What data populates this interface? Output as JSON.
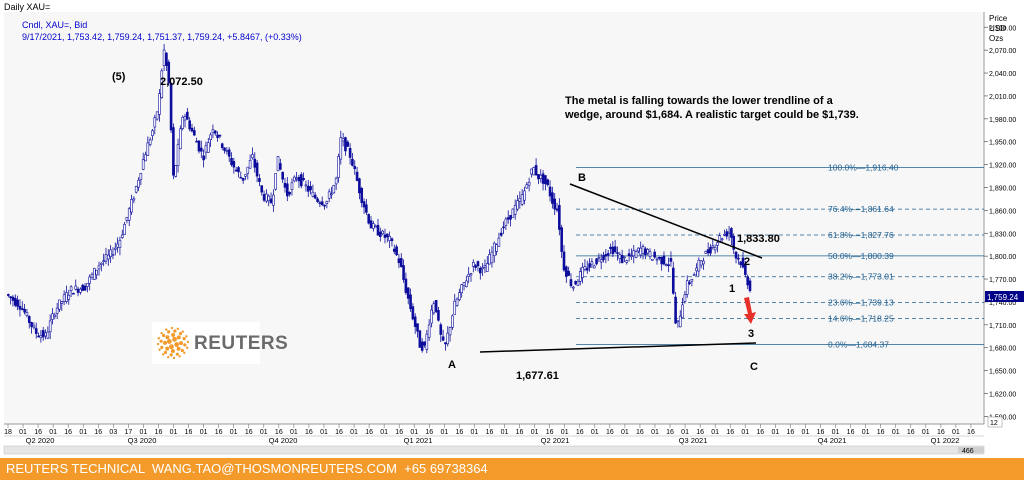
{
  "window_title": "Daily XAU=",
  "header": {
    "line1": "Cndl, XAU=, Bid",
    "line2": "9/17/2021, 1,753.42, 1,759.24, 1,751.37, 1,759.24, +5.8467, (+0.33%)"
  },
  "axis_unit": [
    "Price",
    "USD",
    "Ozs"
  ],
  "current_price_label": "1,759.24",
  "scroll_label": "466",
  "scroll_right_label": "12",
  "annotation": "The metal is falling towards the lower trendline of a wedge, around $1,684. A realistic target could be $1,739.",
  "labels": {
    "wave5": "(5)",
    "high": "2,072.50",
    "point_a": "A",
    "low_a": "1,677.61",
    "point_b": "B",
    "point_c": "C",
    "wave1": "1",
    "wave2": "2",
    "wave3": "3",
    "high_b": "1,833.80"
  },
  "logo": {
    "name": "REUTERS"
  },
  "footer": "REUTERS TECHNICAL  WANG.TAO@THOSMONREUTERS.COM  +65 69738364",
  "colors": {
    "candle": "#0d0d9c",
    "fib": "#1f5f8f",
    "trend": "#000000",
    "arrow": "#e8302a",
    "footer_bg": "#f39a2b"
  },
  "chart_data": {
    "type": "candlestick",
    "title": "Daily XAU=",
    "ylabel": "Price USD Ozs",
    "ylim": [
      1580,
      2120
    ],
    "y_ticks": [
      1590,
      1620,
      1650,
      1680,
      1710,
      1740,
      1770,
      1800,
      1830,
      1860,
      1890,
      1920,
      1950,
      1980,
      2010,
      2040,
      2070,
      2100
    ],
    "y_tick_labels": [
      "1,590.00",
      "1,620.00",
      "1,650.00",
      "1,680.00",
      "1,710.00",
      "1,740.00",
      "1,770.00",
      "1,800.00",
      "1,830.00",
      "1,860.00",
      "1,890.00",
      "1,920.00",
      "1,950.00",
      "1,980.00",
      "2,010.00",
      "2,040.00",
      "2,070.00",
      "2,100.00"
    ],
    "x_day_ticks": [
      "18",
      "01",
      "16",
      "01",
      "16",
      "01",
      "16",
      "03",
      "17",
      "01",
      "16",
      "01",
      "16",
      "01",
      "16",
      "01",
      "16",
      "01",
      "16",
      "01",
      "16",
      "01",
      "16",
      "01",
      "16",
      "01",
      "16",
      "01",
      "16",
      "01",
      "16",
      "01",
      "16",
      "01",
      "16",
      "01",
      "16",
      "01",
      "16",
      "01",
      "16",
      "01",
      "16",
      "01",
      "16",
      "01",
      "16",
      "01",
      "16",
      "01",
      "16",
      "01",
      "16",
      "01",
      "16",
      "01",
      "16",
      "01",
      "16",
      "01",
      "16",
      "01",
      "16",
      "01",
      "16"
    ],
    "x_quarters": [
      "Q2 2020",
      "Q3 2020",
      "Q4 2020",
      "Q1 2021",
      "Q2 2021",
      "Q3 2021",
      "Q4 2021",
      "Q1 2022"
    ],
    "series_path": [
      [
        0,
        1750
      ],
      [
        3,
        1735
      ],
      [
        6,
        1700
      ],
      [
        8,
        1695
      ],
      [
        10,
        1730
      ],
      [
        13,
        1755
      ],
      [
        16,
        1760
      ],
      [
        19,
        1790
      ],
      [
        21,
        1800
      ],
      [
        23,
        1820
      ],
      [
        26,
        1880
      ],
      [
        28,
        1930
      ],
      [
        30,
        1970
      ],
      [
        31,
        2000
      ],
      [
        32,
        2072.5
      ],
      [
        33,
        2030
      ],
      [
        34,
        1900
      ],
      [
        36,
        1990
      ],
      [
        38,
        1960
      ],
      [
        40,
        1930
      ],
      [
        42,
        1970
      ],
      [
        44,
        1945
      ],
      [
        46,
        1920
      ],
      [
        48,
        1900
      ],
      [
        50,
        1930
      ],
      [
        52,
        1880
      ],
      [
        54,
        1870
      ],
      [
        55,
        1930
      ],
      [
        57,
        1880
      ],
      [
        59,
        1905
      ],
      [
        61,
        1890
      ],
      [
        63,
        1875
      ],
      [
        65,
        1870
      ],
      [
        67,
        1900
      ],
      [
        68,
        1955
      ],
      [
        70,
        1930
      ],
      [
        72,
        1880
      ],
      [
        74,
        1840
      ],
      [
        76,
        1830
      ],
      [
        78,
        1820
      ],
      [
        80,
        1790
      ],
      [
        81,
        1760
      ],
      [
        83,
        1710
      ],
      [
        84,
        1684
      ],
      [
        85,
        1680
      ],
      [
        86,
        1720
      ],
      [
        87,
        1745
      ],
      [
        88,
        1700
      ],
      [
        89,
        1677.61
      ],
      [
        91,
        1735
      ],
      [
        93,
        1765
      ],
      [
        95,
        1790
      ],
      [
        97,
        1780
      ],
      [
        99,
        1810
      ],
      [
        101,
        1840
      ],
      [
        103,
        1860
      ],
      [
        105,
        1880
      ],
      [
        106,
        1900
      ],
      [
        107,
        1916.4
      ],
      [
        108,
        1905
      ],
      [
        109,
        1900
      ],
      [
        110,
        1890
      ],
      [
        111,
        1870
      ],
      [
        112,
        1860
      ],
      [
        113,
        1790
      ],
      [
        114,
        1775
      ],
      [
        115,
        1760
      ],
      [
        117,
        1780
      ],
      [
        119,
        1790
      ],
      [
        121,
        1800
      ],
      [
        123,
        1810
      ],
      [
        125,
        1795
      ],
      [
        127,
        1800
      ],
      [
        129,
        1810
      ],
      [
        131,
        1800
      ],
      [
        133,
        1795
      ],
      [
        135,
        1790
      ],
      [
        136,
        1700
      ],
      [
        137,
        1730
      ],
      [
        138,
        1760
      ],
      [
        140,
        1780
      ],
      [
        141,
        1795
      ],
      [
        143,
        1810
      ],
      [
        145,
        1825
      ],
      [
        147,
        1833.8
      ],
      [
        148,
        1800
      ],
      [
        149,
        1795
      ],
      [
        150,
        1775
      ],
      [
        151,
        1759.24
      ]
    ]
  }
}
